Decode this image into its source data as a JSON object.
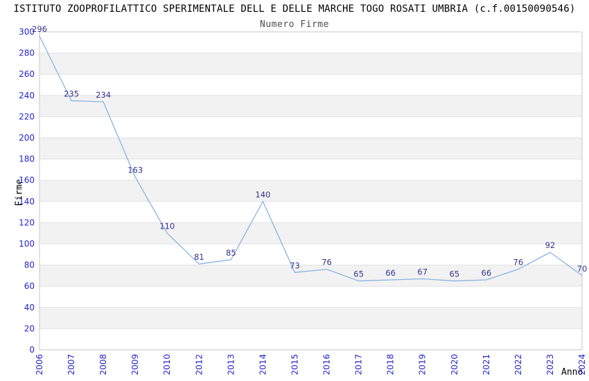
{
  "chart_data": {
    "type": "line",
    "title": "ISTITUTO ZOOPROFILATTICO SPERIMENTALE DELL E DELLE MARCHE TOGO ROSATI UMBRIA (c.f.00150090546)",
    "subtitle": "Numero Firme",
    "xlabel": "Anno",
    "ylabel": "Firme",
    "categories": [
      "2006",
      "2007",
      "2008",
      "2009",
      "2010",
      "2012",
      "2013",
      "2014",
      "2015",
      "2016",
      "2017",
      "2018",
      "2019",
      "2020",
      "2021",
      "2022",
      "2023",
      "2024"
    ],
    "values": [
      296,
      235,
      234,
      163,
      110,
      81,
      85,
      140,
      73,
      76,
      65,
      66,
      67,
      65,
      66,
      76,
      92,
      70
    ],
    "ylim": [
      0,
      300
    ],
    "ytick_step": 20,
    "grid": "horizontal",
    "legend": "none",
    "plot_background": "alternating horizontal bands, white and light gray, one band per 20 units, top band white",
    "x_tick_rotation": -90,
    "point_labels_visible": true,
    "colors": {
      "line": "#89b2e4",
      "point_label": "#333392",
      "tick_label": "#2323cc",
      "band": "#f2f2f2",
      "gridline": "#e2e2e2",
      "plot_border": "#d0d0d0",
      "title": "#000000",
      "subtitle": "#4d4d4d",
      "axis_title": "#000000"
    }
  }
}
